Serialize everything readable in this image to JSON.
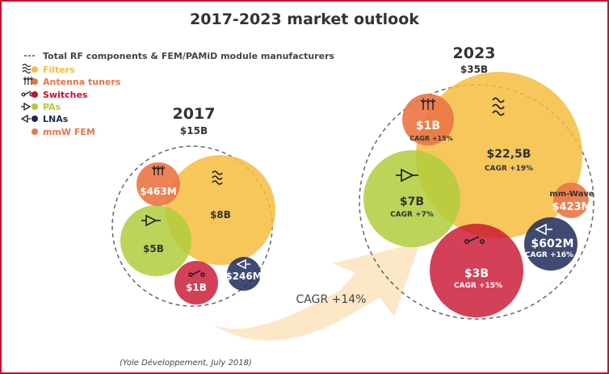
{
  "title": "2017-2023 market outlook",
  "source": "(Yole Développement, July 2018)",
  "legend": {
    "total_label": "Total RF components & FEM/PAMiD module manufacturers",
    "items": [
      {
        "label": "Filters",
        "color": "#f6bd3f",
        "icon": "filter-wave-icon"
      },
      {
        "label": "Antenna tuners",
        "color": "#eb7445",
        "icon": "antenna-tuner-icon"
      },
      {
        "label": "Switches",
        "color": "#c8102e",
        "icon": "switch-icon"
      },
      {
        "label": "PAs",
        "color": "#b0cc3c",
        "icon": "pa-amplifier-icon"
      },
      {
        "label": "LNAs",
        "color": "#1f2a5a",
        "icon": "lna-amplifier-icon"
      },
      {
        "label": "mmW FEM",
        "color": "#eb7445",
        "icon": "dot"
      }
    ]
  },
  "y2017": {
    "year": "2017",
    "total": "$15B",
    "filters": "$8B",
    "antenna": "$463M",
    "pas": "$5B",
    "switches": "$1B",
    "lnas": "$246M"
  },
  "y2023": {
    "year": "2023",
    "total": "$35B",
    "filters": "$22,5B",
    "filters_cagr": "CAGR +19%",
    "antenna": "$1B",
    "antenna_cagr": "CAGR +15%",
    "pas": "$7B",
    "pas_cagr": "CAGR +7%",
    "switches": "$3B",
    "switches_cagr": "CAGR +15%",
    "lnas": "$602M",
    "lnas_cagr": "CAGR +16%",
    "mmw_label": "mm-Wave",
    "mmw": "$423M"
  },
  "arrow_label": "CAGR +14%",
  "colors": {
    "filters": "#f6bd3f",
    "antenna": "#eb7445",
    "switches": "#c8102e",
    "pas": "#b0cc3c",
    "lnas": "#1f2a5a",
    "frame": "#c8102e"
  }
}
